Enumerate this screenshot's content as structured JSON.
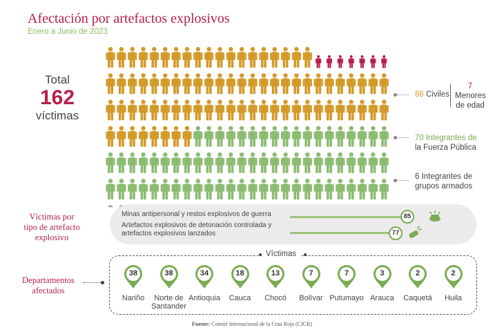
{
  "title": "Afectación por artefactos explosivos",
  "subtitle": "Enero a Junio de 2023",
  "total": {
    "label": "Total",
    "value": "162",
    "unit": "víctimas"
  },
  "colors": {
    "accent": "#b51f48",
    "olive": "#d39a2a",
    "green": "#8cbb72",
    "gray": "#9a9a9a",
    "minor": "#b51f48"
  },
  "legend": {
    "civilians": {
      "value": "86",
      "label": "Civiles"
    },
    "minors": {
      "value": "7",
      "label_line1": "Menores",
      "label_line2": "de edad"
    },
    "security_forces": {
      "text_line1": "70 Integrantes de",
      "text_line2": "la Fuerza Pública"
    },
    "armed_groups": {
      "text_line1": "6 Integrantes de",
      "text_line2": "grupos armados"
    }
  },
  "sections": {
    "artefact_line1": "Víctimas por",
    "artefact_line2": "tipo de artefacto",
    "artefact_line3": "explosivo",
    "dept_line1": "Departamentos",
    "dept_line2": "afectados"
  },
  "artefacts": {
    "mines_label": "Minas antipersonal y restos explosivos de guerra",
    "mines_value": "85",
    "ied_label_line1": "Artefactos explosivos de detonación controlada y",
    "ied_label_line2": "artefactos explosivos lanzados",
    "ied_value": "77"
  },
  "dept_header": "Víctimas",
  "source": {
    "label": "Fuente:",
    "text": " Comité Internacional de la Cruz Roja (CICR)"
  },
  "chart_data": {
    "type": "pictogram",
    "total": 162,
    "categories": [
      "Civiles (adultos)",
      "Menores de edad",
      "Integrantes de la Fuerza Pública",
      "Integrantes de grupos armados"
    ],
    "values": [
      79,
      7,
      70,
      6
    ],
    "civiles_total": 86,
    "victims_by_artefact": [
      {
        "label": "Minas antipersonal y restos explosivos de guerra",
        "value": 85
      },
      {
        "label": "Artefactos explosivos de detonación controlada y artefactos explosivos lanzados",
        "value": 77
      }
    ],
    "departments": [
      {
        "name": "Nariño",
        "value": 38
      },
      {
        "name": "Norte de Santander",
        "value": 38
      },
      {
        "name": "Antioquia",
        "value": 34
      },
      {
        "name": "Cauca",
        "value": 18
      },
      {
        "name": "Chocó",
        "value": 13
      },
      {
        "name": "Bolívar",
        "value": 7
      },
      {
        "name": "Putumayo",
        "value": 7
      },
      {
        "name": "Arauca",
        "value": 3
      },
      {
        "name": "Caquetá",
        "value": 2
      },
      {
        "name": "Huila",
        "value": 2
      }
    ],
    "dept_name_lines": [
      [
        "Nariño"
      ],
      [
        "Norte de",
        "Santander"
      ],
      [
        "Antioquia"
      ],
      [
        "Cauca"
      ],
      [
        "Chocó"
      ],
      [
        "Bolívar"
      ],
      [
        "Putumayo"
      ],
      [
        "Arauca"
      ],
      [
        "Caquetá"
      ],
      [
        "Huila"
      ]
    ]
  }
}
